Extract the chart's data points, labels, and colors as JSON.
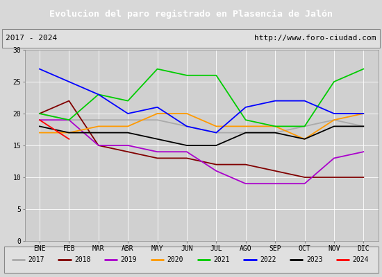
{
  "title": "Evolucion del paro registrado en Plasencia de Jalón",
  "subtitle_left": "2017 - 2024",
  "subtitle_right": "http://www.foro-ciudad.com",
  "months": [
    "ENE",
    "FEB",
    "MAR",
    "ABR",
    "MAY",
    "JUN",
    "JUL",
    "AGO",
    "SEP",
    "OCT",
    "NOV",
    "DIC"
  ],
  "ylim": [
    0,
    30
  ],
  "yticks": [
    0,
    5,
    10,
    15,
    20,
    25,
    30
  ],
  "series": {
    "2017": {
      "color": "#aaaaaa",
      "data": [
        20,
        19,
        19,
        19,
        19,
        18,
        17,
        17,
        17,
        18,
        19,
        18
      ]
    },
    "2018": {
      "color": "#800000",
      "data": [
        20,
        22,
        15,
        14,
        13,
        13,
        12,
        12,
        11,
        10,
        10,
        10
      ]
    },
    "2019": {
      "color": "#aa00cc",
      "data": [
        19,
        19,
        15,
        15,
        14,
        14,
        11,
        9,
        9,
        9,
        13,
        14
      ]
    },
    "2020": {
      "color": "#ff9900",
      "data": [
        17,
        17,
        18,
        18,
        20,
        20,
        18,
        18,
        18,
        16,
        19,
        20
      ]
    },
    "2021": {
      "color": "#00cc00",
      "data": [
        20,
        19,
        23,
        22,
        27,
        26,
        26,
        19,
        18,
        18,
        25,
        27
      ]
    },
    "2022": {
      "color": "#0000ff",
      "data": [
        27,
        25,
        23,
        20,
        21,
        18,
        17,
        21,
        22,
        22,
        20,
        20
      ]
    },
    "2023": {
      "color": "#000000",
      "data": [
        18,
        17,
        17,
        17,
        16,
        15,
        15,
        17,
        17,
        16,
        18,
        18
      ]
    },
    "2024": {
      "color": "#ff0000",
      "data": [
        19,
        16,
        null,
        null,
        null,
        null,
        null,
        null,
        null,
        null,
        null,
        null
      ]
    }
  },
  "bg_color": "#d8d8d8",
  "plot_bg_color": "#d0d0d0",
  "title_bg_color": "#3a6abf",
  "title_color": "#ffffff",
  "header_bg_color": "#e0e0e0",
  "legend_border_color": "#888888",
  "grid_color": "#ffffff"
}
